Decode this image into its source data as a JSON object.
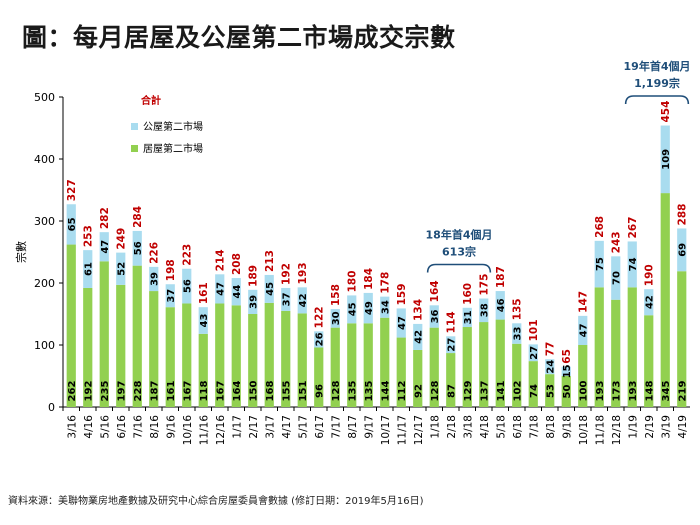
{
  "title": "圖：每月居屋及公屋第二市場成交宗數",
  "source": "資料來源：美聯物業房地產數據及研究中心綜合房屋委員會數據 (修訂日期：2019年5月16日)",
  "colors": {
    "home_ownership": "#92d050",
    "public_housing": "#a9dcef",
    "total_label": "#c00000",
    "annotation": "#1f4e79",
    "axis": "#000000"
  },
  "annotations": [
    {
      "line1": "18年首4個月",
      "line2": "613宗",
      "from": "1/18",
      "to": "4/18"
    },
    {
      "line1": "19年首4個月",
      "line2": "1,199宗",
      "from": "1/19",
      "to": "4/19"
    }
  ],
  "chart_data": {
    "type": "bar",
    "stacked": true,
    "ylabel": "宗數",
    "ylim": [
      0,
      500
    ],
    "yticks": [
      0,
      100,
      200,
      300,
      400,
      500
    ],
    "grid": false,
    "legend_position": "top-left",
    "total_label": "合計",
    "categories": [
      "3/16",
      "4/16",
      "5/16",
      "6/16",
      "7/16",
      "8/16",
      "9/16",
      "10/16",
      "11/16",
      "12/16",
      "1/17",
      "2/17",
      "3/17",
      "4/17",
      "5/17",
      "6/17",
      "7/17",
      "8/17",
      "9/17",
      "10/17",
      "11/17",
      "12/17",
      "1/18",
      "2/18",
      "3/18",
      "4/18",
      "5/18",
      "6/18",
      "7/18",
      "8/18",
      "9/18",
      "10/18",
      "11/18",
      "12/18",
      "1/19",
      "2/19",
      "3/19",
      "4/19"
    ],
    "series": [
      {
        "name": "居屋第二市場",
        "color": "#92d050",
        "values": [
          262,
          192,
          235,
          197,
          228,
          187,
          161,
          167,
          118,
          167,
          164,
          150,
          168,
          155,
          151,
          96,
          128,
          135,
          135,
          144,
          112,
          92,
          128,
          87,
          129,
          137,
          141,
          102,
          74,
          53,
          50,
          100,
          193,
          173,
          193,
          148,
          345,
          219
        ]
      },
      {
        "name": "公屋第二市場",
        "color": "#a9dcef",
        "values": [
          65,
          61,
          47,
          52,
          56,
          39,
          37,
          56,
          43,
          47,
          44,
          39,
          45,
          37,
          42,
          26,
          30,
          45,
          49,
          34,
          47,
          42,
          36,
          27,
          31,
          38,
          46,
          33,
          27,
          24,
          15,
          47,
          75,
          70,
          74,
          42,
          109,
          69
        ]
      }
    ],
    "totals": [
      327,
      253,
      282,
      249,
      284,
      226,
      198,
      223,
      161,
      214,
      208,
      189,
      213,
      192,
      193,
      122,
      158,
      180,
      184,
      178,
      159,
      134,
      164,
      114,
      160,
      175,
      187,
      135,
      101,
      77,
      65,
      147,
      268,
      243,
      267,
      190,
      454,
      288
    ]
  }
}
